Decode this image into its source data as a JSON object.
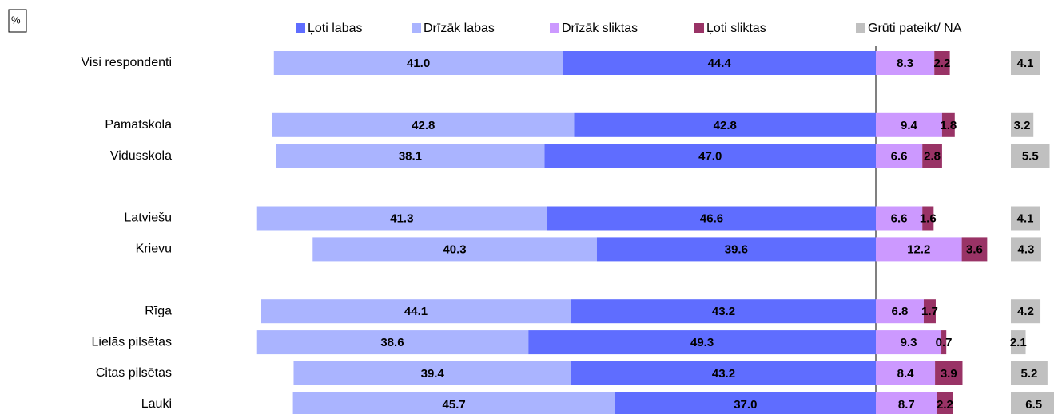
{
  "chart_data": {
    "type": "diverging-bar",
    "unit_label": "%",
    "categories": [
      "Visi respondenti",
      null,
      "Pamatskola",
      "Vidusskola",
      null,
      "Latviešu",
      "Krievu",
      null,
      "Rīga",
      "Lielās pilsētas",
      "Citas pilsētas",
      "Lauki"
    ],
    "series": [
      {
        "name": "Ļoti labas",
        "color": "#5f6dff",
        "side": "left",
        "values": [
          44.4,
          null,
          42.8,
          47.0,
          null,
          46.6,
          39.6,
          null,
          43.2,
          49.3,
          43.2,
          37.0
        ],
        "value_labels": [
          "44.4",
          null,
          "42.8",
          "47.0",
          null,
          "46.6",
          "39.6",
          null,
          "43.2",
          "49.3",
          "43.2",
          "37.0"
        ]
      },
      {
        "name": "Drīzāk labas",
        "color": "#aab4ff",
        "side": "left",
        "values": [
          41.0,
          null,
          42.8,
          38.1,
          null,
          41.3,
          40.3,
          null,
          44.1,
          38.6,
          39.4,
          45.7
        ],
        "value_labels": [
          "41.0",
          null,
          "42.8",
          "38.1",
          null,
          "41.3",
          "40.3",
          null,
          "44.1",
          "38.6",
          "39.4",
          "45.7"
        ]
      },
      {
        "name": "Drīzāk sliktas",
        "color": "#cc99ff",
        "side": "right",
        "values": [
          8.3,
          null,
          9.4,
          6.6,
          null,
          6.6,
          12.2,
          null,
          6.8,
          9.3,
          8.4,
          8.7
        ],
        "value_labels": [
          "8.3",
          null,
          "9.4",
          "6.6",
          null,
          "6.6",
          "12.2",
          null,
          "6.8",
          "9.3",
          "8.4",
          "8.7"
        ]
      },
      {
        "name": "Ļoti sliktas",
        "color": "#993366",
        "side": "right",
        "values": [
          2.2,
          null,
          1.8,
          2.8,
          null,
          1.6,
          3.6,
          null,
          1.7,
          0.7,
          3.9,
          2.2
        ],
        "value_labels": [
          "2.2",
          null,
          "1.8",
          "2.8",
          null,
          "1.6",
          "3.6",
          null,
          "1.7",
          "0.7",
          "3.9",
          "2.2"
        ]
      },
      {
        "name": "Grūti pateikt/ NA",
        "color": "#c0c0c0",
        "side": "separate",
        "values": [
          4.1,
          null,
          3.2,
          5.5,
          null,
          4.1,
          4.3,
          null,
          4.2,
          2.1,
          5.2,
          6.5
        ],
        "value_labels": [
          "4.1",
          null,
          "3.2",
          "5.5",
          null,
          "4.1",
          "4.3",
          null,
          "4.2",
          "2.1",
          "5.2",
          "6.5"
        ]
      }
    ]
  }
}
